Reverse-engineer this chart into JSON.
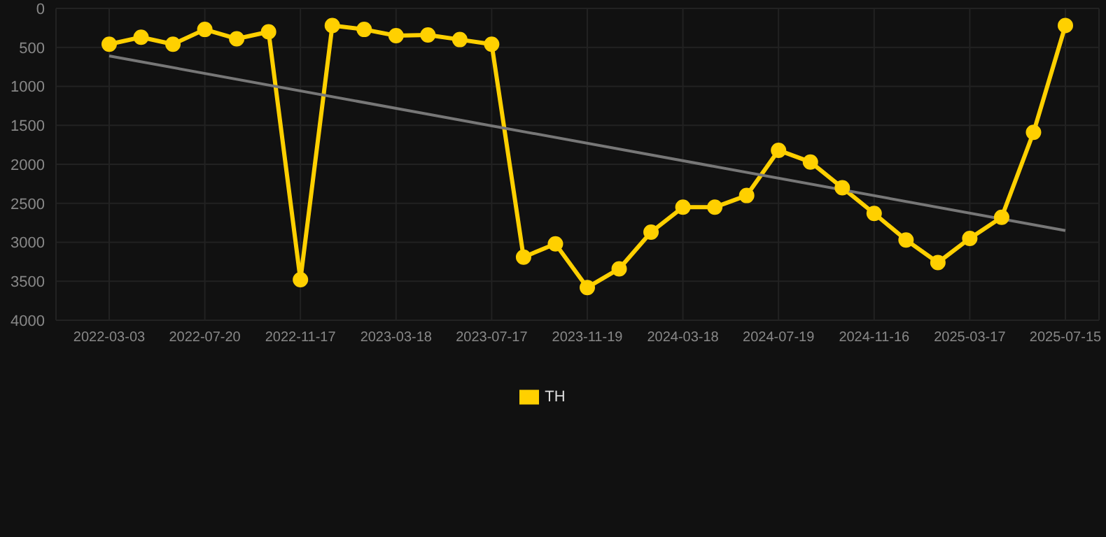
{
  "chart_data": {
    "type": "line",
    "categories": [
      "2022-03-03",
      null,
      null,
      "2022-07-20",
      null,
      null,
      "2022-11-17",
      null,
      null,
      "2023-03-18",
      null,
      null,
      "2023-07-17",
      null,
      null,
      "2023-11-19",
      null,
      null,
      "2024-03-18",
      null,
      null,
      "2024-07-19",
      null,
      null,
      "2024-11-16",
      null,
      null,
      "2025-03-17",
      null,
      null,
      "2025-07-15"
    ],
    "series": [
      {
        "name": "TH",
        "color": "#ffd000",
        "marker": "circle",
        "values": [
          460,
          370,
          460,
          270,
          390,
          300,
          3480,
          220,
          270,
          350,
          340,
          400,
          460,
          3190,
          3020,
          3580,
          3340,
          2870,
          2550,
          2550,
          2400,
          1820,
          1970,
          2300,
          2630,
          2970,
          3260,
          2950,
          2680,
          1590,
          220
        ]
      },
      {
        "color": "#777777",
        "marker": "none",
        "values": [
          610,
          null,
          null,
          null,
          null,
          null,
          null,
          null,
          null,
          null,
          null,
          null,
          null,
          null,
          null,
          null,
          null,
          null,
          null,
          null,
          null,
          null,
          null,
          null,
          null,
          null,
          null,
          null,
          null,
          null,
          2850
        ]
      }
    ],
    "ylim": [
      4000,
      0
    ],
    "yticks": [
      0,
      500,
      1000,
      1500,
      2000,
      2500,
      3000,
      3500,
      4000
    ],
    "grid": true,
    "legend": "bottom"
  }
}
